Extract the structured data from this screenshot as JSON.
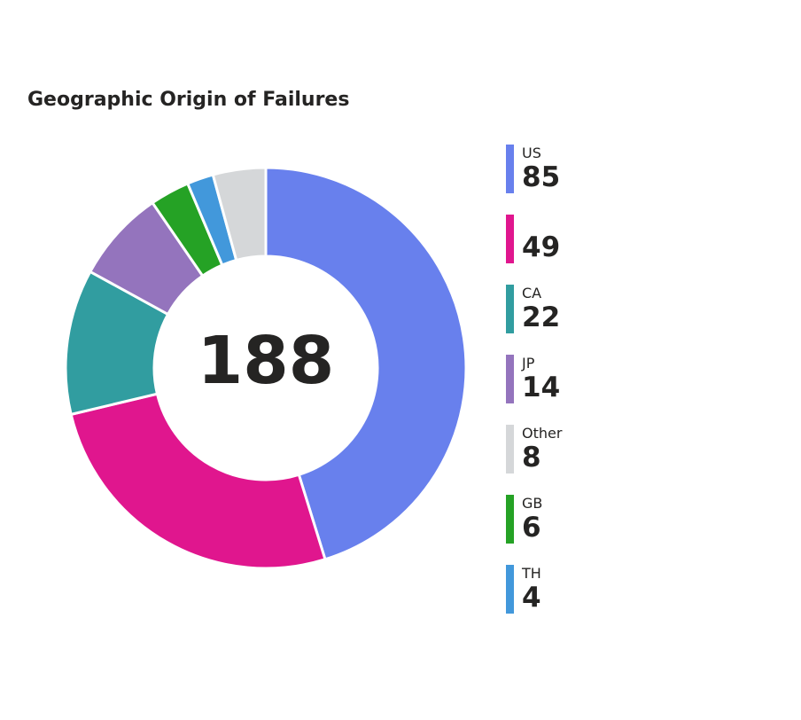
{
  "chart_data": {
    "type": "pie",
    "variant": "donut",
    "title": "Geographic Origin of Failures",
    "total": "188",
    "legend_position": "right",
    "slices": [
      {
        "label": "US",
        "value": 85,
        "color": "#6880ED"
      },
      {
        "label": "",
        "value": 49,
        "color": "#E0168E"
      },
      {
        "label": "CA",
        "value": 22,
        "color": "#319DA0"
      },
      {
        "label": "JP",
        "value": 14,
        "color": "#9474BD"
      },
      {
        "label": "GB",
        "value": 6,
        "color": "#25A225"
      },
      {
        "label": "TH",
        "value": 4,
        "color": "#4298DB"
      },
      {
        "label": "Other",
        "value": 8,
        "color": "#D5D7D9"
      }
    ],
    "legend_order": [
      "US",
      "",
      "CA",
      "JP",
      "Other",
      "GB",
      "TH"
    ]
  }
}
